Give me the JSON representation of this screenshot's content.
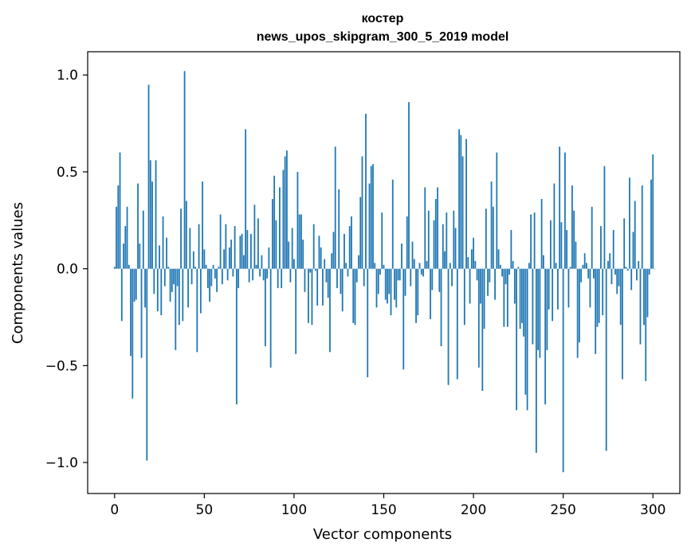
{
  "chart_data": {
    "type": "bar",
    "title_line1": "костер",
    "title_line2": "news_upos_skipgram_300_5_2019 model",
    "xlabel": "Vector components",
    "ylabel": "Components values",
    "xlim": [
      -15,
      315
    ],
    "ylim": [
      -1.16,
      1.12
    ],
    "xticks": [
      0,
      50,
      100,
      150,
      200,
      250,
      300
    ],
    "xtick_labels": [
      "0",
      "50",
      "100",
      "150",
      "200",
      "250",
      "300"
    ],
    "yticks": [
      -1.0,
      -0.5,
      0.0,
      0.5,
      1.0
    ],
    "ytick_labels": [
      "−1.0",
      "−0.5",
      "0.0",
      "0.5",
      "1.0"
    ],
    "bar_color": "#1f77b4",
    "grid": false,
    "x": "0..299",
    "values": [
      0.01,
      0.32,
      0.43,
      0.6,
      -0.27,
      0.13,
      0.22,
      0.32,
      0.02,
      -0.45,
      -0.67,
      -0.17,
      -0.16,
      0.44,
      0.13,
      -0.46,
      0.3,
      -0.2,
      -0.99,
      0.95,
      0.56,
      0.45,
      -0.13,
      0.56,
      -0.22,
      0.12,
      -0.24,
      0.27,
      -0.09,
      0.16,
      0.01,
      -0.17,
      -0.12,
      -0.08,
      -0.42,
      -0.09,
      -0.29,
      0.31,
      -0.27,
      1.02,
      0.35,
      -0.2,
      0.21,
      -0.08,
      0.09,
      0.01,
      -0.43,
      0.23,
      -0.23,
      0.45,
      0.1,
      0.02,
      -0.1,
      -0.17,
      -0.09,
      0.02,
      -0.05,
      -0.12,
      0.01,
      0.28,
      -0.08,
      0.1,
      0.23,
      -0.06,
      0.11,
      0.15,
      -0.04,
      0.22,
      -0.7,
      -0.1,
      0.17,
      0.18,
      0.07,
      0.72,
      0.2,
      -0.07,
      0.18,
      -0.06,
      0.33,
      0.02,
      0.26,
      -0.04,
      0.07,
      -0.06,
      -0.4,
      -0.05,
      0.11,
      -0.51,
      0.36,
      0.48,
      0.25,
      -0.1,
      0.42,
      -0.1,
      0.51,
      0.58,
      0.61,
      0.14,
      -0.07,
      0.21,
      0.05,
      -0.44,
      0.5,
      0.28,
      0.28,
      0.15,
      -0.12,
      0.0,
      -0.28,
      -0.02,
      -0.29,
      0.23,
      -0.01,
      -0.19,
      0.17,
      0.11,
      -0.19,
      0.05,
      -0.07,
      -0.15,
      -0.43,
      0.08,
      0.19,
      0.63,
      -0.1,
      0.41,
      -0.13,
      -0.22,
      0.18,
      0.03,
      -0.04,
      0.22,
      0.27,
      -0.28,
      -0.29,
      -0.07,
      0.07,
      0.37,
      0.58,
      -0.09,
      0.8,
      -0.56,
      0.44,
      0.53,
      0.54,
      0.03,
      -0.2,
      -0.13,
      -0.03,
      0.29,
      0.02,
      -0.16,
      -0.18,
      -0.13,
      -0.24,
      0.46,
      -0.16,
      -0.2,
      -0.06,
      -0.06,
      0.13,
      -0.52,
      -0.14,
      0.27,
      0.86,
      -0.09,
      0.14,
      0.05,
      -0.28,
      -0.24,
      0.03,
      -0.03,
      -0.04,
      0.42,
      0.04,
      0.3,
      -0.26,
      -0.11,
      0.25,
      0.36,
      0.42,
      -0.12,
      -0.4,
      0.23,
      0.09,
      0.29,
      -0.6,
      0.03,
      -0.09,
      0.3,
      0.21,
      -0.57,
      0.72,
      0.69,
      0.58,
      -0.29,
      0.67,
      0.06,
      -0.18,
      0.1,
      0.16,
      0.04,
      -0.06,
      -0.51,
      -0.18,
      -0.63,
      -0.31,
      0.31,
      -0.14,
      -0.07,
      0.45,
      0.32,
      -0.16,
      0.6,
      0.1,
      0.02,
      -0.04,
      -0.3,
      -0.08,
      -0.3,
      -0.03,
      0.2,
      0.04,
      -0.18,
      -0.73,
      0.01,
      -0.31,
      -0.28,
      -0.35,
      -0.65,
      -0.73,
      0.03,
      0.28,
      -0.39,
      0.29,
      -0.95,
      -0.42,
      -0.46,
      0.36,
      0.07,
      -0.7,
      -0.42,
      -0.21,
      0.25,
      -0.27,
      0.44,
      0.03,
      -0.21,
      0.63,
      0.24,
      -1.05,
      0.6,
      0.2,
      -0.2,
      0.01,
      0.43,
      0.3,
      0.14,
      -0.46,
      -0.38,
      -0.07,
      0.02,
      0.08,
      0.03,
      -0.05,
      -0.2,
      0.32,
      -0.05,
      -0.44,
      -0.3,
      -0.28,
      0.22,
      -0.24,
      0.53,
      -0.94,
      0.04,
      0.08,
      -0.08,
      0.2,
      -0.03,
      -0.13,
      -0.09,
      -0.29,
      -0.57,
      0.26,
      0.01,
      -0.01,
      0.47,
      -0.11,
      0.19,
      0.35,
      -0.06,
      0.04,
      -0.39,
      0.43,
      -0.29,
      -0.58,
      -0.25,
      -0.03,
      0.46,
      0.59,
      0.0
    ]
  }
}
